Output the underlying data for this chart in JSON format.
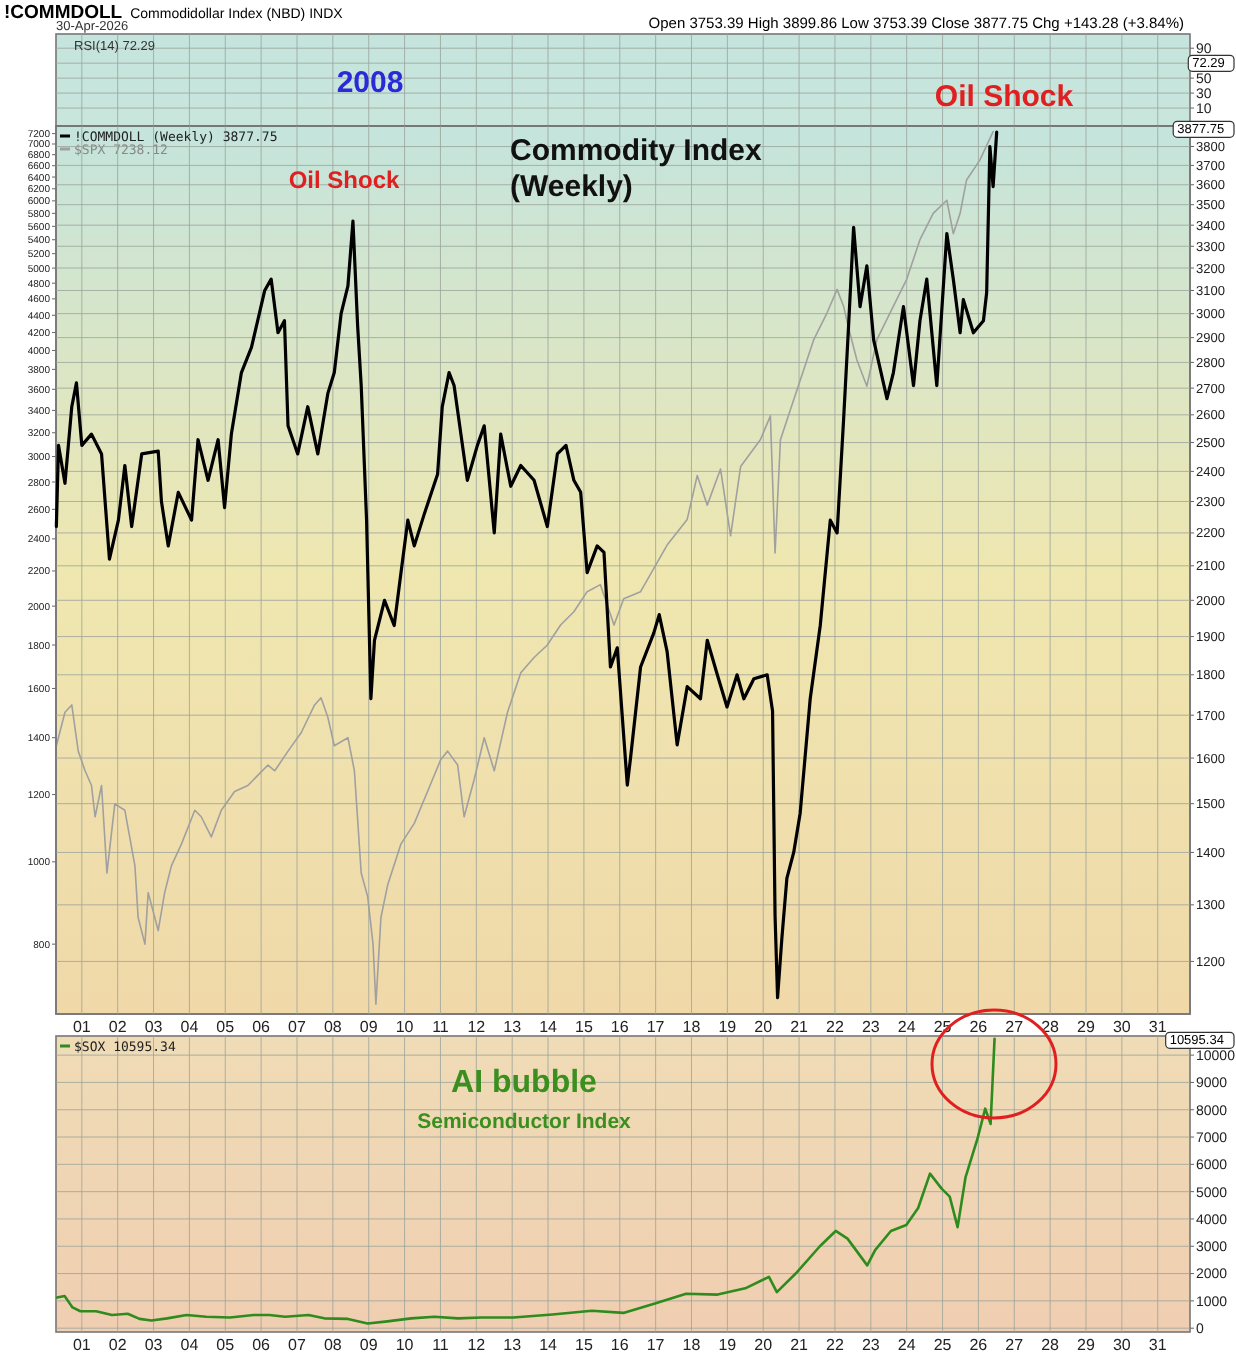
{
  "chart_data": [
    {
      "type": "line",
      "title": "!COMMDOLL",
      "subtitle": "Commodidollar Index (NBD) INDX",
      "annotations": [
        "30-Apr-2026",
        "Open 3753.39 High 3899.86 Low 3753.39 Close 3877.75 Chg +143.28 (+3.84%)",
        "RSI(14) 72.29",
        "72.29",
        "2008",
        "Oil Shock"
      ],
      "xlim": [
        2000.28,
        2031.9
      ],
      "xticks": [
        {
          "value": 2001,
          "label": null
        },
        {
          "value": 2002,
          "label": null
        },
        {
          "value": 2003,
          "label": null
        },
        {
          "value": 2004,
          "label": null
        },
        {
          "value": 2005,
          "label": null
        },
        {
          "value": 2006,
          "label": null
        },
        {
          "value": 2007,
          "label": null
        },
        {
          "value": 2008,
          "label": null
        },
        {
          "value": 2009,
          "label": null
        },
        {
          "value": 2010,
          "label": null
        },
        {
          "value": 2011,
          "label": null
        },
        {
          "value": 2012,
          "label": null
        },
        {
          "value": 2013,
          "label": null
        },
        {
          "value": 2014,
          "label": null
        },
        {
          "value": 2015,
          "label": null
        },
        {
          "value": 2016,
          "label": null
        },
        {
          "value": 2017,
          "label": null
        },
        {
          "value": 2018,
          "label": null
        },
        {
          "value": 2019,
          "label": null
        },
        {
          "value": 2020,
          "label": null
        },
        {
          "value": 2021,
          "label": null
        },
        {
          "value": 2022,
          "label": null
        },
        {
          "value": 2023,
          "label": null
        },
        {
          "value": 2024,
          "label": null
        },
        {
          "value": 2025,
          "label": null
        },
        {
          "value": 2026,
          "label": null
        },
        {
          "value": 2027,
          "label": null
        },
        {
          "value": 2028,
          "label": null
        },
        {
          "value": 2029,
          "label": null
        },
        {
          "value": 2030,
          "label": null
        },
        {
          "value": 2031,
          "label": null
        }
      ],
      "ylim": [
        -14,
        109
      ],
      "yticks": [
        10,
        30,
        50,
        {
          "value": 70,
          "label": null
        },
        90
      ],
      "grid": true,
      "tick_labels": "y"
    },
    {
      "type": "line",
      "title": "Commodity Index (Weekly)",
      "annotations": [
        "Oil Shock",
        "3877.75"
      ],
      "log": true,
      "grid": true,
      "legend": "top left",
      "series": [
        {
          "name": "!COMMDOLL (Weekly) 3877.75",
          "color": "#000000",
          "x": [
            2000.29,
            2000.35,
            2000.53,
            2000.72,
            2000.85,
            2001.0,
            2001.27,
            2001.55,
            2001.77,
            2002.02,
            2002.2,
            2002.39,
            2002.67,
            2003.13,
            2003.22,
            2003.41,
            2003.69,
            2004.06,
            2004.24,
            2004.52,
            2004.8,
            2004.98,
            2005.17,
            2005.45,
            2005.73,
            2006.1,
            2006.28,
            2006.47,
            2006.65,
            2006.75,
            2007.02,
            2007.3,
            2007.58,
            2007.86,
            2008.04,
            2008.23,
            2008.42,
            2008.56,
            2008.69,
            2008.79,
            2008.94,
            2009.06,
            2009.16,
            2009.44,
            2009.71,
            2009.9,
            2010.09,
            2010.27,
            2010.55,
            2010.92,
            2011.05,
            2011.24,
            2011.38,
            2011.57,
            2011.75,
            2012.03,
            2012.22,
            2012.5,
            2012.68,
            2012.96,
            2013.24,
            2013.61,
            2013.98,
            2014.26,
            2014.5,
            2014.72,
            2014.91,
            2015.09,
            2015.37,
            2015.56,
            2015.74,
            2015.93,
            2016.21,
            2016.3,
            2016.58,
            2016.95,
            2017.1,
            2017.32,
            2017.6,
            2017.88,
            2018.25,
            2018.44,
            2018.72,
            2018.99,
            2019.27,
            2019.46,
            2019.74,
            2020.11,
            2020.26,
            2020.33,
            2020.4,
            2020.52,
            2020.66,
            2020.85,
            2021.03,
            2021.31,
            2021.59,
            2021.87,
            2022.06,
            2022.24,
            2022.37,
            2022.52,
            2022.7,
            2022.89,
            2023.08,
            2023.45,
            2023.63,
            2023.91,
            2024.19,
            2024.37,
            2024.56,
            2024.84,
            2025.12,
            2025.3,
            2025.49,
            2025.58,
            2025.86,
            2026.14,
            2026.23,
            2026.32,
            2026.41,
            2026.51
          ],
          "values": [
            2220,
            2490,
            2360,
            2630,
            2720,
            2490,
            2530,
            2460,
            2120,
            2240,
            2420,
            2220,
            2460,
            2470,
            2300,
            2160,
            2330,
            2240,
            2510,
            2370,
            2510,
            2280,
            2530,
            2760,
            2860,
            3100,
            3150,
            2920,
            2970,
            2560,
            2460,
            2630,
            2460,
            2680,
            2760,
            3000,
            3120,
            3420,
            2950,
            2710,
            2240,
            1740,
            1890,
            2000,
            1930,
            2080,
            2240,
            2160,
            2260,
            2390,
            2630,
            2760,
            2710,
            2530,
            2370,
            2490,
            2560,
            2200,
            2530,
            2350,
            2420,
            2370,
            2220,
            2460,
            2490,
            2370,
            2330,
            2080,
            2160,
            2140,
            1820,
            1870,
            1540,
            1600,
            1820,
            1910,
            1960,
            1860,
            1630,
            1770,
            1740,
            1890,
            1800,
            1720,
            1800,
            1740,
            1790,
            1800,
            1710,
            1280,
            1140,
            1240,
            1350,
            1400,
            1480,
            1740,
            1930,
            2240,
            2200,
            2580,
            2920,
            3390,
            3030,
            3210,
            2890,
            2660,
            2760,
            3030,
            2710,
            2970,
            3150,
            2710,
            3360,
            3150,
            2920,
            3060,
            2920,
            2970,
            3090,
            3800,
            3590,
            3877.75
          ]
        }
      ],
      "xlim": [
        2000.28,
        2031.9
      ],
      "xticks": [
        {
          "value": 2001,
          "label": "01"
        },
        {
          "value": 2002,
          "label": "02"
        },
        {
          "value": 2003,
          "label": "03"
        },
        {
          "value": 2004,
          "label": "04"
        },
        {
          "value": 2005,
          "label": "05"
        },
        {
          "value": 2006,
          "label": "06"
        },
        {
          "value": 2007,
          "label": "07"
        },
        {
          "value": 2008,
          "label": "08"
        },
        {
          "value": 2009,
          "label": "09"
        },
        {
          "value": 2010,
          "label": "10"
        },
        {
          "value": 2011,
          "label": "11"
        },
        {
          "value": 2012,
          "label": "12"
        },
        {
          "value": 2013,
          "label": "13"
        },
        {
          "value": 2014,
          "label": "14"
        },
        {
          "value": 2015,
          "label": "15"
        },
        {
          "value": 2016,
          "label": "16"
        },
        {
          "value": 2017,
          "label": "17"
        },
        {
          "value": 2018,
          "label": "18"
        },
        {
          "value": 2019,
          "label": "19"
        },
        {
          "value": 2020,
          "label": "20"
        },
        {
          "value": 2021,
          "label": "21"
        },
        {
          "value": 2022,
          "label": "22"
        },
        {
          "value": 2023,
          "label": "23"
        },
        {
          "value": 2024,
          "label": "24"
        },
        {
          "value": 2025,
          "label": "25"
        },
        {
          "value": 2026,
          "label": "26"
        },
        {
          "value": 2027,
          "label": "27"
        },
        {
          "value": 2028,
          "label": "28"
        },
        {
          "value": 2029,
          "label": "29"
        },
        {
          "value": 2030,
          "label": "30"
        },
        {
          "value": 2031,
          "label": "31"
        }
      ],
      "ylim": [
        1114,
        3912
      ],
      "yticks": [
        1200,
        1300,
        1400,
        1500,
        1600,
        1700,
        1800,
        1900,
        2000,
        2100,
        2200,
        2300,
        2400,
        2500,
        2600,
        2700,
        2800,
        2900,
        3000,
        3100,
        3200,
        3300,
        3400,
        3500,
        3600,
        3700,
        3800
      ]
    },
    {
      "type": "line",
      "log": true,
      "legend": "top left",
      "tick_labels": "y",
      "series": [
        {
          "name": "$SPX 7238.12",
          "color": "#a0a0a0",
          "x": [
            2000.29,
            2000.53,
            2000.72,
            2000.9,
            2001.09,
            2001.27,
            2001.37,
            2001.55,
            2001.7,
            2001.92,
            2002.2,
            2002.48,
            2002.57,
            2002.76,
            2002.85,
            2003.13,
            2003.31,
            2003.5,
            2003.78,
            2004.15,
            2004.33,
            2004.61,
            2004.89,
            2005.26,
            2005.63,
            2006.19,
            2006.38,
            2006.75,
            2007.12,
            2007.49,
            2007.67,
            2007.86,
            2008.04,
            2008.42,
            2008.6,
            2008.79,
            2008.97,
            2009.12,
            2009.2,
            2009.34,
            2009.53,
            2009.9,
            2010.27,
            2010.64,
            2011.01,
            2011.2,
            2011.48,
            2011.66,
            2011.94,
            2012.22,
            2012.5,
            2012.87,
            2013.24,
            2013.61,
            2013.98,
            2014.35,
            2014.72,
            2015.09,
            2015.46,
            2015.84,
            2016.11,
            2016.58,
            2017.32,
            2017.88,
            2018.16,
            2018.44,
            2018.81,
            2019.09,
            2019.37,
            2019.92,
            2020.2,
            2020.33,
            2020.48,
            2020.85,
            2021.41,
            2021.78,
            2022.06,
            2022.24,
            2022.37,
            2022.61,
            2022.89,
            2023.17,
            2023.63,
            2024.0,
            2024.37,
            2024.74,
            2025.12,
            2025.3,
            2025.49,
            2025.67,
            2026.04,
            2026.41
          ],
          "values": [
            1370,
            1500,
            1530,
            1350,
            1280,
            1230,
            1130,
            1230,
            970,
            1170,
            1150,
            990,
            860,
            800,
            920,
            830,
            920,
            990,
            1050,
            1150,
            1130,
            1070,
            1150,
            1210,
            1230,
            1300,
            1280,
            1350,
            1420,
            1530,
            1560,
            1480,
            1370,
            1400,
            1280,
            970,
            910,
            800,
            680,
            860,
            940,
            1050,
            1110,
            1210,
            1320,
            1350,
            1300,
            1130,
            1250,
            1400,
            1280,
            1500,
            1670,
            1740,
            1800,
            1900,
            1970,
            2080,
            2120,
            1900,
            2040,
            2080,
            2360,
            2530,
            2850,
            2630,
            2900,
            2420,
            2920,
            3140,
            3350,
            2310,
            3140,
            3500,
            4120,
            4430,
            4720,
            4510,
            4270,
            3900,
            3630,
            4120,
            4510,
            4850,
            5400,
            5800,
            6010,
            5490,
            5800,
            6350,
            6700,
            7238.12
          ]
        }
      ],
      "xlim": [
        2000.28,
        2031.9
      ],
      "ylim": [
        662,
        7350
      ],
      "yticks": [
        800,
        1000,
        1200,
        1400,
        1600,
        1800,
        2000,
        2200,
        2400,
        2600,
        2800,
        3000,
        3200,
        3400,
        3600,
        3800,
        4000,
        4200,
        4400,
        4600,
        4800,
        5000,
        5200,
        5400,
        5600,
        5800,
        6000,
        6200,
        6400,
        6600,
        6800,
        7000,
        7200
      ]
    },
    {
      "type": "line",
      "annotations": [
        "AI bubble",
        "Semiconductor Index",
        "10595.34"
      ],
      "grid": true,
      "legend": "top left",
      "series": [
        {
          "name": "$SOX 10595.34",
          "color": "#2e8b1e",
          "x": [
            2000.31,
            2000.52,
            2000.74,
            2000.96,
            2001.4,
            2001.84,
            2002.28,
            2002.61,
            2002.94,
            2003.38,
            2003.92,
            2004.47,
            2005.13,
            2005.79,
            2006.23,
            2006.67,
            2007.32,
            2007.76,
            2008.42,
            2008.97,
            2009.52,
            2010.18,
            2010.83,
            2011.49,
            2012.15,
            2013.03,
            2014.12,
            2015.22,
            2016.1,
            2016.98,
            2017.85,
            2018.73,
            2019.5,
            2020.16,
            2020.38,
            2020.92,
            2021.58,
            2022.02,
            2022.35,
            2022.9,
            2023.12,
            2023.56,
            2023.99,
            2024.32,
            2024.65,
            2024.98,
            2025.2,
            2025.42,
            2025.64,
            2025.97,
            2026.19,
            2026.34,
            2026.45
          ],
          "values": [
            1120,
            1180,
            760,
            620,
            620,
            480,
            530,
            340,
            280,
            360,
            480,
            420,
            390,
            480,
            480,
            420,
            480,
            360,
            340,
            170,
            250,
            360,
            420,
            360,
            390,
            390,
            500,
            640,
            560,
            900,
            1260,
            1230,
            1460,
            1880,
            1320,
            2020,
            3000,
            3560,
            3280,
            2300,
            2860,
            3560,
            3780,
            4400,
            5660,
            5100,
            4820,
            3700,
            5520,
            6920,
            8040,
            7480,
            10595.34
          ]
        }
      ],
      "xlim": [
        2000.28,
        2031.9
      ],
      "xticks": [
        {
          "value": 2001,
          "label": "01"
        },
        {
          "value": 2002,
          "label": "02"
        },
        {
          "value": 2003,
          "label": "03"
        },
        {
          "value": 2004,
          "label": "04"
        },
        {
          "value": 2005,
          "label": "05"
        },
        {
          "value": 2006,
          "label": "06"
        },
        {
          "value": 2007,
          "label": "07"
        },
        {
          "value": 2008,
          "label": "08"
        },
        {
          "value": 2009,
          "label": "09"
        },
        {
          "value": 2010,
          "label": "10"
        },
        {
          "value": 2011,
          "label": "11"
        },
        {
          "value": 2012,
          "label": "12"
        },
        {
          "value": 2013,
          "label": "13"
        },
        {
          "value": 2014,
          "label": "14"
        },
        {
          "value": 2015,
          "label": "15"
        },
        {
          "value": 2016,
          "label": "16"
        },
        {
          "value": 2017,
          "label": "17"
        },
        {
          "value": 2018,
          "label": "18"
        },
        {
          "value": 2019,
          "label": "19"
        },
        {
          "value": 2020,
          "label": "20"
        },
        {
          "value": 2021,
          "label": "21"
        },
        {
          "value": 2022,
          "label": "22"
        },
        {
          "value": 2023,
          "label": "23"
        },
        {
          "value": 2024,
          "label": "24"
        },
        {
          "value": 2025,
          "label": "25"
        },
        {
          "value": 2026,
          "label": "26"
        },
        {
          "value": 2027,
          "label": "27"
        },
        {
          "value": 2028,
          "label": "28"
        },
        {
          "value": 2029,
          "label": "29"
        },
        {
          "value": 2030,
          "label": "30"
        },
        {
          "value": 2031,
          "label": "31"
        }
      ],
      "ylim": [
        -140,
        10700
      ],
      "yticks": [
        0,
        1000,
        2000,
        3000,
        4000,
        5000,
        6000,
        7000,
        8000,
        9000,
        10000
      ]
    }
  ]
}
